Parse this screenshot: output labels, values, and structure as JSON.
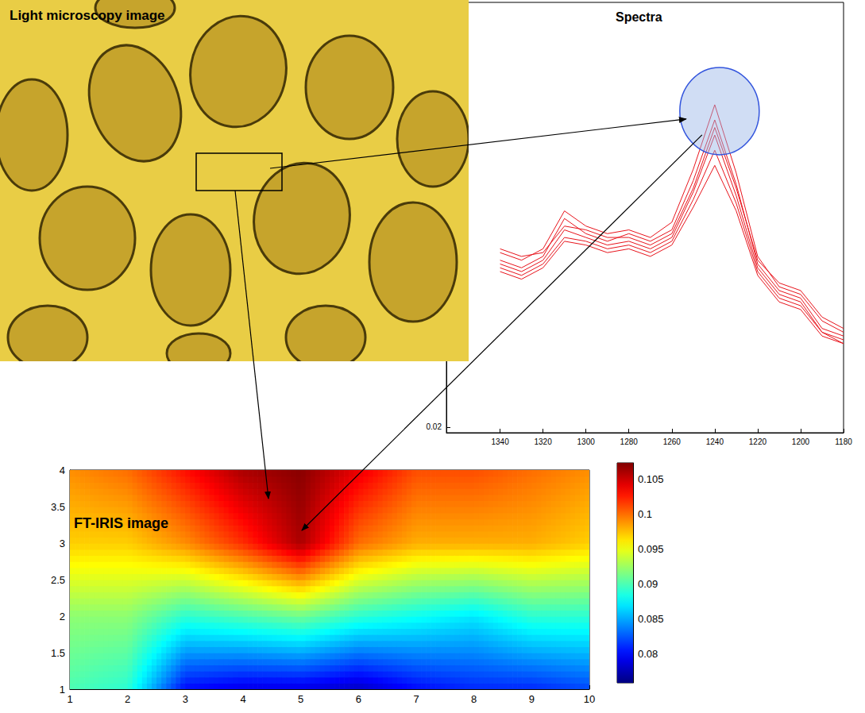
{
  "chart_data": [
    {
      "type": "image",
      "title": "Light microscopy image"
    },
    {
      "type": "line",
      "title": "Spectra",
      "x": [
        1340,
        1330,
        1320,
        1310,
        1300,
        1290,
        1280,
        1270,
        1260,
        1250,
        1240,
        1230,
        1220,
        1210,
        1200,
        1190,
        1180
      ],
      "series": [
        {
          "color": "#e8141c",
          "values": [
            0.066,
            0.064,
            0.067,
            0.077,
            0.073,
            0.071,
            0.072,
            0.07,
            0.074,
            0.088,
            0.105,
            0.087,
            0.065,
            0.057,
            0.055,
            0.048,
            0.045
          ]
        },
        {
          "color": "#e8141c",
          "values": [
            0.064,
            0.062,
            0.065,
            0.075,
            0.071,
            0.069,
            0.071,
            0.069,
            0.072,
            0.085,
            0.101,
            0.084,
            0.063,
            0.056,
            0.054,
            0.046,
            0.044
          ]
        },
        {
          "color": "#e8141c",
          "values": [
            0.063,
            0.061,
            0.064,
            0.072,
            0.07,
            0.068,
            0.069,
            0.067,
            0.07,
            0.082,
            0.097,
            0.081,
            0.062,
            0.055,
            0.053,
            0.045,
            0.043
          ]
        },
        {
          "color": "#e8141c",
          "values": [
            0.062,
            0.06,
            0.063,
            0.07,
            0.069,
            0.067,
            0.068,
            0.066,
            0.069,
            0.08,
            0.093,
            0.079,
            0.061,
            0.054,
            0.052,
            0.045,
            0.042
          ]
        },
        {
          "color": "#e8141c",
          "values": [
            0.061,
            0.059,
            0.062,
            0.069,
            0.068,
            0.066,
            0.067,
            0.065,
            0.068,
            0.078,
            0.089,
            0.077,
            0.06,
            0.053,
            0.051,
            0.044,
            0.042
          ]
        },
        {
          "color": "#e8141c",
          "values": [
            0.067,
            0.065,
            0.066,
            0.073,
            0.072,
            0.07,
            0.07,
            0.068,
            0.071,
            0.083,
            0.099,
            0.083,
            0.064,
            0.058,
            0.056,
            0.049,
            0.046
          ]
        }
      ],
      "xlim": [
        1365,
        1180
      ],
      "xticks": [
        1340,
        1320,
        1300,
        1280,
        1260,
        1240,
        1220,
        1200,
        1180
      ],
      "ylim": [
        0.0185,
        0.132
      ],
      "yticks": [
        0.02
      ],
      "grid": false
    },
    {
      "type": "heatmap",
      "title": "FT-IRIS image",
      "x": [
        1,
        2,
        3,
        4,
        5,
        6,
        7,
        8,
        9,
        10
      ],
      "y": [
        1,
        2,
        3,
        4
      ],
      "cells": [
        [
          0.09,
          0.089,
          0.08,
          0.079,
          0.079,
          0.078,
          0.08,
          0.081,
          0.081,
          0.082
        ],
        [
          0.092,
          0.092,
          0.089,
          0.09,
          0.091,
          0.089,
          0.088,
          0.087,
          0.089,
          0.089
        ],
        [
          0.097,
          0.097,
          0.099,
          0.102,
          0.106,
          0.1,
          0.098,
          0.098,
          0.098,
          0.097
        ],
        [
          0.099,
          0.1,
          0.103,
          0.106,
          0.107,
          0.104,
          0.101,
          0.101,
          0.1,
          0.099
        ]
      ],
      "xlim": [
        1,
        10
      ],
      "xticks": [
        1,
        2,
        3,
        4,
        5,
        6,
        7,
        8,
        9,
        10
      ],
      "ylim": [
        1,
        4
      ],
      "yticks": [
        1,
        1.5,
        2,
        2.5,
        3,
        3.5,
        4
      ],
      "colorbar": {
        "lim": [
          0.0759,
          0.1073
        ],
        "ticks": [
          0.08,
          0.085,
          0.09,
          0.095,
          0.1,
          0.105
        ]
      },
      "grid": false
    }
  ]
}
